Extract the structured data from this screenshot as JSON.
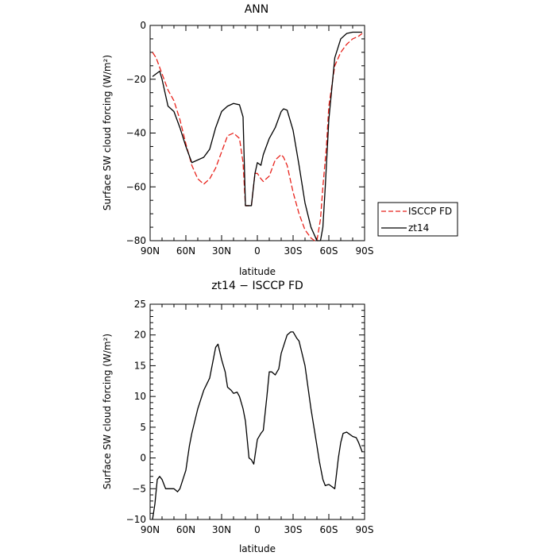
{
  "chart_data": [
    {
      "type": "line",
      "title": "ANN",
      "xlabel": "latitude",
      "ylabel": "Surface SW cloud forcing (W/m²)",
      "x_ticks": [
        "90N",
        "60N",
        "30N",
        "0",
        "30S",
        "60S",
        "90S"
      ],
      "y_ticks": [
        "0",
        "−20",
        "−40",
        "−60",
        "−80"
      ],
      "ylim": [
        -80,
        0
      ],
      "xlim": [
        90,
        -90
      ],
      "x_direction": "north-to-south",
      "legend_position": "outside-right-bottom",
      "series": [
        {
          "name": "ISCCP FD",
          "color": "#e8221b",
          "dash": "dashed",
          "x": [
            88,
            85,
            80,
            75,
            70,
            65,
            60,
            55,
            50,
            45,
            40,
            35,
            30,
            25,
            20,
            15,
            12,
            10,
            5,
            2,
            0,
            -3,
            -5,
            -10,
            -15,
            -20,
            -22,
            -25,
            -30,
            -35,
            -40,
            -45,
            -48,
            -50,
            -53,
            -55,
            -58,
            -60,
            -65,
            -70,
            -75,
            -80,
            -85,
            -88
          ],
          "y": [
            -10,
            -12,
            -18,
            -24,
            -28,
            -35,
            -44,
            -52,
            -57,
            -59,
            -57,
            -53,
            -47,
            -41,
            -40,
            -42,
            -51,
            -67,
            -67,
            -55,
            -55,
            -57,
            -58,
            -56,
            -50,
            -48,
            -49,
            -52,
            -62,
            -70,
            -76,
            -79,
            -80,
            -80,
            -72,
            -60,
            -45,
            -30,
            -15,
            -10,
            -7,
            -5,
            -4,
            -3
          ]
        },
        {
          "name": "zt14",
          "color": "#000000",
          "dash": "solid",
          "x": [
            88,
            85,
            82,
            80,
            75,
            70,
            65,
            60,
            55,
            50,
            45,
            40,
            35,
            30,
            25,
            20,
            15,
            12,
            10,
            5,
            2,
            0,
            -3,
            -5,
            -10,
            -15,
            -20,
            -22,
            -25,
            -30,
            -35,
            -40,
            -45,
            -50,
            -53,
            -55,
            -57,
            -60,
            -65,
            -70,
            -75,
            -80,
            -85,
            -88
          ],
          "y": [
            -19,
            -18,
            -17,
            -20,
            -30,
            -32,
            -38,
            -45,
            -51,
            -50,
            -49,
            -46,
            -38,
            -32,
            -30,
            -29,
            -29.5,
            -34,
            -67,
            -67,
            -55,
            -51,
            -52,
            -48,
            -42,
            -38,
            -32,
            -31,
            -31.5,
            -39,
            -52,
            -66,
            -75,
            -80,
            -80,
            -75,
            -60,
            -35,
            -12,
            -5,
            -3,
            -2.5,
            -2.5,
            -2.5
          ]
        }
      ]
    },
    {
      "type": "line",
      "title": "zt14 − ISCCP FD",
      "xlabel": "latitude",
      "ylabel": "Surface SW cloud forcing (W/m²)",
      "x_ticks": [
        "90N",
        "60N",
        "30N",
        "0",
        "30S",
        "60S",
        "90S"
      ],
      "y_ticks": [
        "25",
        "20",
        "15",
        "10",
        "5",
        "0",
        "−5",
        "−10"
      ],
      "ylim": [
        -10,
        25
      ],
      "xlim": [
        90,
        -90
      ],
      "x_direction": "north-to-south",
      "series": [
        {
          "color": "#000000",
          "x": [
            88,
            86,
            84,
            82,
            80,
            77,
            75,
            70,
            67,
            65,
            60,
            57,
            55,
            50,
            45,
            40,
            37,
            35,
            33,
            30,
            27,
            25,
            22,
            20,
            17,
            15,
            12,
            10,
            7,
            5,
            3,
            0,
            -3,
            -5,
            -8,
            -10,
            -12,
            -15,
            -18,
            -20,
            -25,
            -28,
            -30,
            -33,
            -35,
            -40,
            -45,
            -50,
            -52,
            -55,
            -57,
            -60,
            -65,
            -68,
            -70,
            -72,
            -75,
            -80,
            -83,
            -85,
            -88
          ],
          "y": [
            -10,
            -7.5,
            -3.5,
            -3,
            -3.5,
            -5,
            -5,
            -5,
            -5.5,
            -5,
            -2,
            2,
            4,
            8,
            11,
            13,
            16,
            18,
            18.5,
            16,
            14,
            11.5,
            11,
            10.5,
            10.7,
            10,
            8,
            6,
            0,
            -0.3,
            -1,
            3,
            4,
            4.5,
            10,
            14,
            14,
            13.5,
            14.5,
            17,
            20,
            20.5,
            20.5,
            19.5,
            19,
            15,
            8,
            2,
            -0.5,
            -3.5,
            -4.5,
            -4.3,
            -5,
            0,
            2.5,
            4,
            4.2,
            3.5,
            3.3,
            2.5,
            1
          ]
        }
      ]
    }
  ],
  "legend": {
    "items": [
      {
        "label": "ISCCP FD",
        "color": "#e8221b",
        "dash": "dashed"
      },
      {
        "label": "zt14",
        "color": "#000000",
        "dash": "solid"
      }
    ]
  }
}
